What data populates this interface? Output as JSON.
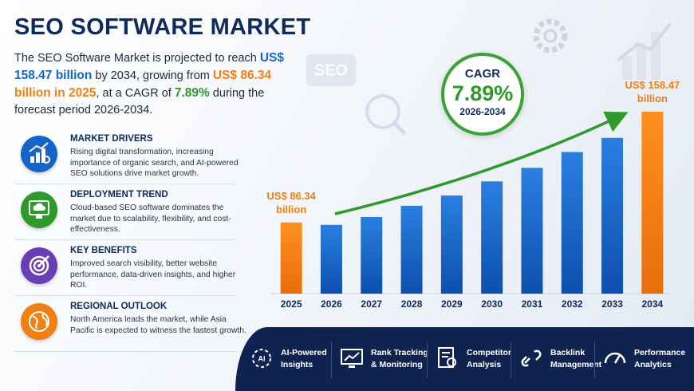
{
  "header": {
    "title": "SEO SOFTWARE MARKET"
  },
  "intro": {
    "segments": [
      {
        "text": "The SEO Software Market is projected to reach ",
        "color": null
      },
      {
        "text": "US$ 158.47 billion",
        "color": "#1565c8"
      },
      {
        "text": " by 2034, growing from ",
        "color": null
      },
      {
        "text": "US$ 86.34 billion in 2025",
        "color": "#f07f14"
      },
      {
        "text": ", at a CAGR of ",
        "color": null
      },
      {
        "text": "7.89%",
        "color": "#2e9a2c"
      },
      {
        "text": " during the forecast period 2026-2034.",
        "color": null
      }
    ]
  },
  "cards": [
    {
      "heading": "MARKET DRIVERS",
      "text": "Rising digital transformation, increasing importance of organic search, and AI-powered SEO solutions drive market growth.",
      "color": "#1565c8"
    },
    {
      "heading": "DEPLOYMENT TREND",
      "text": "Cloud-based SEO software dominates the market due to scalability, flexibility, and cost-effectiveness.",
      "color": "#2e9a2c"
    },
    {
      "heading": "KEY BENEFITS",
      "text": "Improved search visibility, better website performance, data-driven insights, and higher ROI.",
      "color": "#6a3fb5"
    },
    {
      "heading": "REGIONAL OUTLOOK",
      "text": "North America leads the market, while Asia Pacific is expected to witness the fastest growth.",
      "color": "#f07f14"
    }
  ],
  "cagr": {
    "label": "CAGR",
    "value": "7.89%",
    "period": "2026-2034"
  },
  "chart_data": {
    "type": "bar",
    "categories": [
      "2025",
      "2026",
      "2027",
      "2028",
      "2029",
      "2030",
      "2031",
      "2032",
      "2033",
      "2034"
    ],
    "values": [
      86.34,
      84.8,
      89.9,
      97.2,
      103.9,
      113.1,
      121.9,
      132.2,
      141.4,
      158.47
    ],
    "value_labels": [
      "US$ 86.34 billion",
      null,
      null,
      null,
      null,
      null,
      null,
      null,
      null,
      "US$ 158.47 billion"
    ],
    "colors": [
      "#f07f14",
      "#1565c8",
      "#1565c8",
      "#1565c8",
      "#1565c8",
      "#1565c8",
      "#1565c8",
      "#1565c8",
      "#1565c8",
      "#f07f14"
    ],
    "ylim": [
      40,
      160
    ]
  },
  "features": [
    "AI-Powered Insights",
    "Rank Tracking & Monitoring",
    "Competitor Analysis",
    "Backlink Management",
    "Performance Analytics"
  ]
}
